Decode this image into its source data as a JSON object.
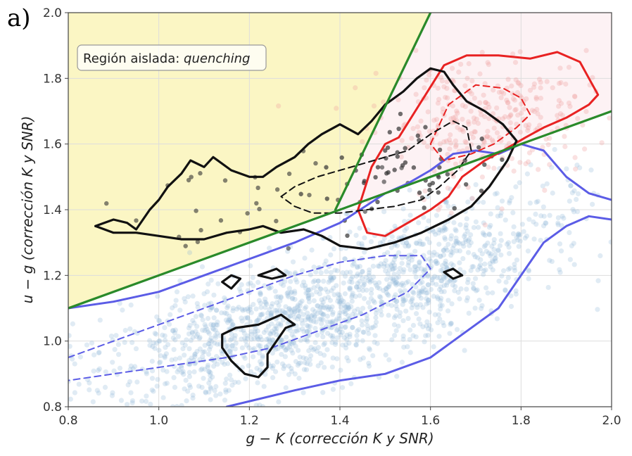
{
  "panel_label": "a)",
  "chart_data": {
    "type": "scatter",
    "xlabel": "g − K (corrección K y SNR)",
    "ylabel": "u − g (corrección K y SNR)",
    "xlim": [
      0.8,
      2.0
    ],
    "ylim": [
      0.8,
      2.0
    ],
    "x_ticks": [
      "0.8",
      "1.0",
      "1.2",
      "1.4",
      "1.6",
      "1.8",
      "2.0"
    ],
    "y_ticks": [
      "0.8",
      "1.0",
      "1.2",
      "1.4",
      "1.6",
      "1.8",
      "2.0"
    ],
    "grid": true,
    "annotation": {
      "prefix": "Región aislada: ",
      "emphasis": "quenching"
    },
    "colors": {
      "blue": "#5b5ce6",
      "red": "#e82222",
      "black": "#111111",
      "green": "#2a8a2a",
      "quench_fill": "#fbf6c4",
      "red_fill": "#fdf2f4",
      "blue_points": "#8fb8d6",
      "red_points": "#ee9a9a",
      "black_points": "#333333"
    },
    "dividing_lines": [
      {
        "name": "line-1",
        "from": [
          0.8,
          1.1
        ],
        "to": [
          2.0,
          1.7
        ]
      },
      {
        "name": "line-2",
        "from": [
          1.39,
          1.4
        ],
        "to": [
          1.6,
          2.0
        ]
      }
    ],
    "contours": [
      {
        "group": "black",
        "style": "solid",
        "points": [
          [
            0.86,
            1.35
          ],
          [
            0.9,
            1.37
          ],
          [
            0.93,
            1.36
          ],
          [
            0.95,
            1.34
          ],
          [
            0.98,
            1.4
          ],
          [
            1.0,
            1.43
          ],
          [
            1.02,
            1.47
          ],
          [
            1.05,
            1.51
          ],
          [
            1.07,
            1.55
          ],
          [
            1.1,
            1.53
          ],
          [
            1.12,
            1.56
          ],
          [
            1.16,
            1.52
          ],
          [
            1.2,
            1.5
          ],
          [
            1.23,
            1.5
          ],
          [
            1.26,
            1.53
          ],
          [
            1.3,
            1.56
          ],
          [
            1.33,
            1.6
          ],
          [
            1.36,
            1.63
          ],
          [
            1.4,
            1.66
          ],
          [
            1.44,
            1.63
          ],
          [
            1.47,
            1.67
          ],
          [
            1.5,
            1.72
          ],
          [
            1.54,
            1.76
          ],
          [
            1.57,
            1.8
          ],
          [
            1.6,
            1.83
          ],
          [
            1.63,
            1.82
          ],
          [
            1.65,
            1.78
          ],
          [
            1.68,
            1.73
          ],
          [
            1.72,
            1.7
          ],
          [
            1.76,
            1.66
          ],
          [
            1.79,
            1.61
          ],
          [
            1.77,
            1.55
          ],
          [
            1.73,
            1.47
          ],
          [
            1.69,
            1.41
          ],
          [
            1.64,
            1.37
          ],
          [
            1.58,
            1.33
          ],
          [
            1.52,
            1.3
          ],
          [
            1.46,
            1.28
          ],
          [
            1.4,
            1.29
          ],
          [
            1.36,
            1.32
          ],
          [
            1.32,
            1.34
          ],
          [
            1.27,
            1.33
          ],
          [
            1.23,
            1.35
          ],
          [
            1.2,
            1.34
          ],
          [
            1.15,
            1.33
          ],
          [
            1.1,
            1.31
          ],
          [
            1.05,
            1.31
          ],
          [
            1.0,
            1.32
          ],
          [
            0.95,
            1.33
          ],
          [
            0.9,
            1.33
          ],
          [
            0.86,
            1.35
          ]
        ]
      },
      {
        "group": "black",
        "style": "dashed",
        "points": [
          [
            1.27,
            1.44
          ],
          [
            1.3,
            1.47
          ],
          [
            1.35,
            1.5
          ],
          [
            1.4,
            1.52
          ],
          [
            1.45,
            1.54
          ],
          [
            1.5,
            1.56
          ],
          [
            1.55,
            1.58
          ],
          [
            1.6,
            1.63
          ],
          [
            1.65,
            1.67
          ],
          [
            1.68,
            1.65
          ],
          [
            1.69,
            1.58
          ],
          [
            1.66,
            1.52
          ],
          [
            1.62,
            1.47
          ],
          [
            1.58,
            1.43
          ],
          [
            1.52,
            1.41
          ],
          [
            1.46,
            1.4
          ],
          [
            1.4,
            1.39
          ],
          [
            1.34,
            1.39
          ],
          [
            1.3,
            1.41
          ],
          [
            1.27,
            1.44
          ]
        ]
      },
      {
        "group": "black",
        "style": "solid",
        "points": [
          [
            1.14,
            1.18
          ],
          [
            1.16,
            1.2
          ],
          [
            1.18,
            1.19
          ],
          [
            1.16,
            1.16
          ],
          [
            1.14,
            1.18
          ]
        ]
      },
      {
        "group": "black",
        "style": "solid",
        "points": [
          [
            1.22,
            1.2
          ],
          [
            1.26,
            1.22
          ],
          [
            1.28,
            1.2
          ],
          [
            1.25,
            1.19
          ],
          [
            1.22,
            1.2
          ]
        ]
      },
      {
        "group": "black",
        "style": "solid",
        "points": [
          [
            1.63,
            1.21
          ],
          [
            1.65,
            1.22
          ],
          [
            1.67,
            1.2
          ],
          [
            1.65,
            1.19
          ],
          [
            1.63,
            1.21
          ]
        ]
      },
      {
        "group": "black",
        "style": "solid",
        "points": [
          [
            1.14,
            0.98
          ],
          [
            1.16,
            0.94
          ],
          [
            1.19,
            0.9
          ],
          [
            1.22,
            0.89
          ],
          [
            1.24,
            0.92
          ],
          [
            1.24,
            0.96
          ],
          [
            1.28,
            1.04
          ],
          [
            1.3,
            1.05
          ],
          [
            1.27,
            1.08
          ],
          [
            1.22,
            1.05
          ],
          [
            1.17,
            1.04
          ],
          [
            1.14,
            1.02
          ],
          [
            1.14,
            0.98
          ]
        ]
      },
      {
        "group": "red",
        "style": "solid",
        "points": [
          [
            1.44,
            1.4
          ],
          [
            1.47,
            1.53
          ],
          [
            1.5,
            1.6
          ],
          [
            1.53,
            1.62
          ],
          [
            1.58,
            1.73
          ],
          [
            1.63,
            1.84
          ],
          [
            1.68,
            1.87
          ],
          [
            1.75,
            1.87
          ],
          [
            1.82,
            1.86
          ],
          [
            1.88,
            1.88
          ],
          [
            1.93,
            1.85
          ],
          [
            1.95,
            1.8
          ],
          [
            1.97,
            1.75
          ],
          [
            1.95,
            1.72
          ],
          [
            1.9,
            1.68
          ],
          [
            1.85,
            1.65
          ],
          [
            1.81,
            1.62
          ],
          [
            1.76,
            1.58
          ],
          [
            1.72,
            1.55
          ],
          [
            1.67,
            1.5
          ],
          [
            1.64,
            1.44
          ],
          [
            1.6,
            1.4
          ],
          [
            1.55,
            1.36
          ],
          [
            1.5,
            1.32
          ],
          [
            1.46,
            1.33
          ],
          [
            1.44,
            1.4
          ]
        ]
      },
      {
        "group": "red",
        "style": "dashed",
        "points": [
          [
            1.6,
            1.6
          ],
          [
            1.64,
            1.72
          ],
          [
            1.7,
            1.78
          ],
          [
            1.76,
            1.77
          ],
          [
            1.8,
            1.74
          ],
          [
            1.82,
            1.69
          ],
          [
            1.79,
            1.65
          ],
          [
            1.74,
            1.6
          ],
          [
            1.69,
            1.57
          ],
          [
            1.63,
            1.55
          ],
          [
            1.6,
            1.6
          ]
        ]
      },
      {
        "group": "blue",
        "style": "solid",
        "points": [
          [
            0.8,
            1.1
          ],
          [
            0.9,
            1.12
          ],
          [
            1.0,
            1.15
          ],
          [
            1.1,
            1.2
          ],
          [
            1.2,
            1.25
          ],
          [
            1.3,
            1.3
          ],
          [
            1.4,
            1.36
          ],
          [
            1.5,
            1.45
          ],
          [
            1.55,
            1.48
          ],
          [
            1.6,
            1.52
          ],
          [
            1.65,
            1.57
          ],
          [
            1.7,
            1.58
          ],
          [
            1.75,
            1.57
          ],
          [
            1.8,
            1.6
          ],
          [
            1.85,
            1.58
          ],
          [
            1.9,
            1.5
          ],
          [
            1.95,
            1.45
          ],
          [
            2.0,
            1.43
          ]
        ]
      },
      {
        "group": "blue",
        "style": "solid",
        "points": [
          [
            1.15,
            0.8
          ],
          [
            1.3,
            0.85
          ],
          [
            1.4,
            0.88
          ],
          [
            1.5,
            0.9
          ],
          [
            1.6,
            0.95
          ],
          [
            1.7,
            1.05
          ],
          [
            1.75,
            1.1
          ],
          [
            1.8,
            1.2
          ],
          [
            1.85,
            1.3
          ],
          [
            1.9,
            1.35
          ],
          [
            1.95,
            1.38
          ],
          [
            2.0,
            1.37
          ]
        ]
      },
      {
        "group": "blue",
        "style": "dashed",
        "points": [
          [
            0.8,
            0.95
          ],
          [
            0.9,
            1.0
          ],
          [
            1.0,
            1.05
          ],
          [
            1.1,
            1.1
          ],
          [
            1.2,
            1.15
          ],
          [
            1.3,
            1.2
          ],
          [
            1.4,
            1.24
          ],
          [
            1.5,
            1.26
          ],
          [
            1.58,
            1.26
          ],
          [
            1.6,
            1.22
          ],
          [
            1.55,
            1.15
          ],
          [
            1.45,
            1.08
          ],
          [
            1.35,
            1.03
          ],
          [
            1.25,
            0.98
          ],
          [
            1.15,
            0.95
          ],
          [
            1.0,
            0.92
          ],
          [
            0.9,
            0.9
          ],
          [
            0.8,
            0.88
          ]
        ]
      }
    ]
  }
}
